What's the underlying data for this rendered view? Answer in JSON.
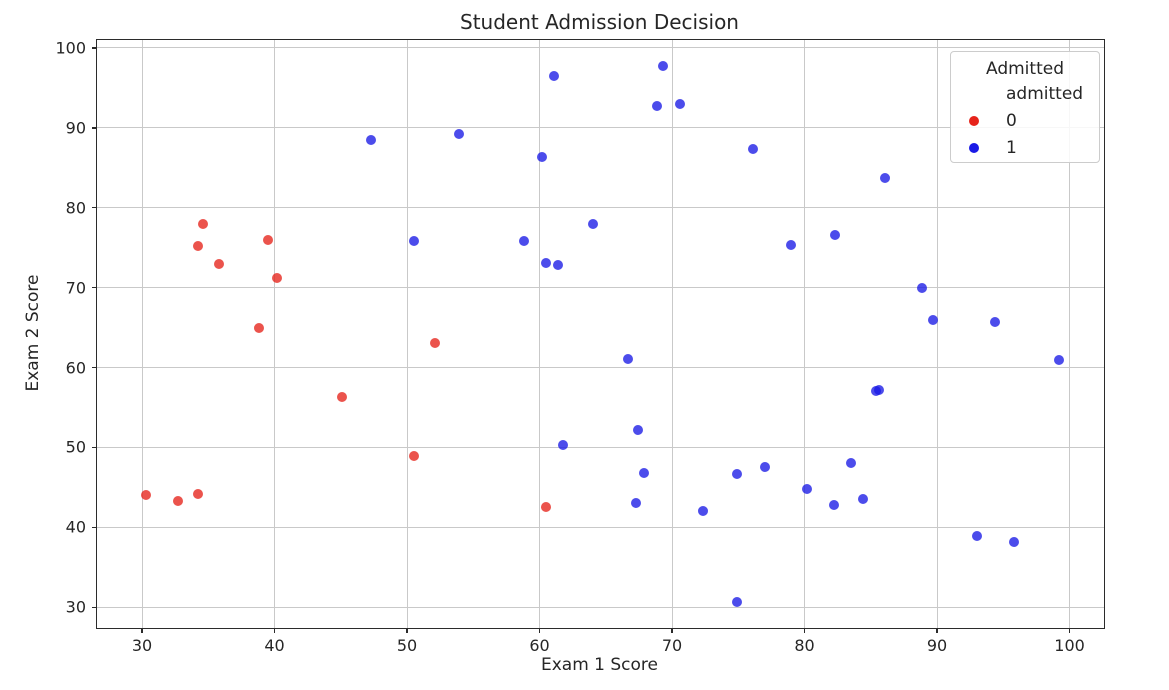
{
  "title": "Student Admission Decision",
  "axes": {
    "x_label": "Exam 1 Score",
    "y_label": "Exam 2 Score"
  },
  "legend": {
    "title": "Admitted",
    "subtitle": "admitted",
    "entries": [
      {
        "label": "0",
        "color": "#e6231a"
      },
      {
        "label": "1",
        "color": "#1a1ae6"
      }
    ]
  },
  "colors": {
    "point_red_base": "#e6231a",
    "point_blue_base": "#1a1ae6",
    "point_alpha": 0.78,
    "grid": "#c9c9c9",
    "spine": "#2b2b2b",
    "text": "#262626"
  },
  "chart_data": {
    "type": "scatter",
    "title": "Student Admission Decision",
    "xlabel": "Exam 1 Score",
    "ylabel": "Exam 2 Score",
    "xlim": [
      26.6,
      102.6
    ],
    "ylim": [
      27.4,
      101.0
    ],
    "xticks": [
      30,
      40,
      50,
      60,
      70,
      80,
      90,
      100
    ],
    "yticks": [
      30,
      40,
      50,
      60,
      70,
      80,
      90,
      100
    ],
    "grid": true,
    "legend_position": "upper right",
    "series": [
      {
        "name": "0",
        "color": "#e6231a",
        "points": [
          [
            30.3,
            44.0
          ],
          [
            32.7,
            43.3
          ],
          [
            34.2,
            44.2
          ],
          [
            34.6,
            78.0
          ],
          [
            34.2,
            75.2
          ],
          [
            35.8,
            72.9
          ],
          [
            38.8,
            65.0
          ],
          [
            39.5,
            76.0
          ],
          [
            40.2,
            71.2
          ],
          [
            45.1,
            56.3
          ],
          [
            50.5,
            48.9
          ],
          [
            52.1,
            63.1
          ],
          [
            60.5,
            42.5
          ]
        ]
      },
      {
        "name": "1",
        "color": "#1a1ae6",
        "points": [
          [
            47.3,
            88.5
          ],
          [
            53.9,
            89.2
          ],
          [
            50.5,
            75.9
          ],
          [
            58.8,
            75.9
          ],
          [
            60.2,
            86.3
          ],
          [
            61.1,
            96.5
          ],
          [
            60.5,
            73.1
          ],
          [
            61.4,
            72.8
          ],
          [
            64.0,
            78.0
          ],
          [
            61.8,
            50.3
          ],
          [
            66.7,
            61.1
          ],
          [
            67.4,
            52.2
          ],
          [
            67.9,
            46.8
          ],
          [
            67.3,
            43.0
          ],
          [
            68.9,
            92.8
          ],
          [
            69.3,
            97.7
          ],
          [
            70.6,
            93.0
          ],
          [
            72.3,
            42.1
          ],
          [
            74.9,
            46.7
          ],
          [
            77.0,
            47.6
          ],
          [
            74.9,
            30.7
          ],
          [
            76.1,
            87.4
          ],
          [
            79.0,
            75.4
          ],
          [
            82.3,
            76.6
          ],
          [
            86.1,
            83.7
          ],
          [
            80.2,
            44.8
          ],
          [
            82.2,
            42.8
          ],
          [
            84.4,
            43.6
          ],
          [
            83.5,
            48.1
          ],
          [
            85.4,
            57.1
          ],
          [
            85.6,
            57.2
          ],
          [
            88.9,
            69.9
          ],
          [
            89.7,
            65.9
          ],
          [
            94.4,
            65.7
          ],
          [
            93.0,
            38.9
          ],
          [
            95.8,
            38.2
          ],
          [
            99.2,
            61.0
          ]
        ]
      }
    ]
  }
}
